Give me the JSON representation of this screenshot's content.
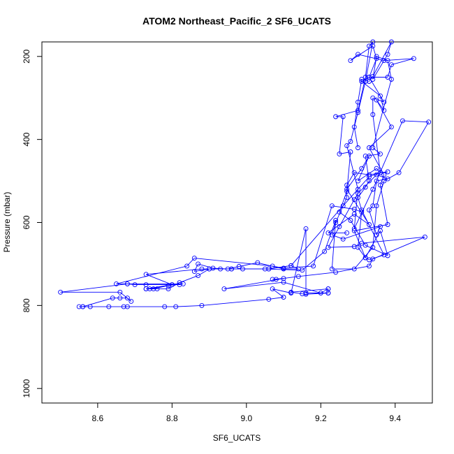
{
  "chart_data": {
    "type": "scatter",
    "title": "ATOM2 Northeast_Pacific_2 SF6_UCATS",
    "xlabel": "SF6_UCATS",
    "ylabel": "Pressure (mbar)",
    "xlim": [
      8.45,
      9.5
    ],
    "ylim": [
      1035,
      165
    ],
    "y_reversed": true,
    "x_ticks": [
      "8.6",
      "8.8",
      "9.0",
      "9.2",
      "9.4"
    ],
    "y_ticks": [
      "200",
      "400",
      "600",
      "800",
      "1000"
    ],
    "grid": false,
    "legend": "none",
    "connect_points": true,
    "series_color": "#0000ff",
    "series": [
      {
        "points": [
          [
            9.27,
            625
          ],
          [
            9.22,
            625
          ],
          [
            9.29,
            580
          ],
          [
            9.33,
            605
          ],
          [
            9.27,
            520
          ],
          [
            9.31,
            470
          ],
          [
            9.33,
            440
          ],
          [
            9.3,
            500
          ],
          [
            9.35,
            470
          ],
          [
            9.36,
            480
          ],
          [
            9.34,
            340
          ],
          [
            9.34,
            300
          ],
          [
            9.37,
            310
          ],
          [
            9.33,
            250
          ],
          [
            9.35,
            205
          ],
          [
            9.34,
            175
          ],
          [
            9.28,
            210
          ],
          [
            9.3,
            195
          ],
          [
            9.37,
            210
          ],
          [
            9.45,
            205
          ],
          [
            9.39,
            220
          ],
          [
            9.38,
            250
          ],
          [
            9.33,
            250
          ],
          [
            9.31,
            260
          ],
          [
            9.36,
            295
          ],
          [
            9.37,
            330
          ],
          [
            9.35,
            305
          ],
          [
            9.39,
            370
          ],
          [
            9.33,
            420
          ],
          [
            9.37,
            485
          ],
          [
            9.36,
            510
          ],
          [
            9.38,
            605
          ],
          [
            9.29,
            620
          ],
          [
            9.32,
            685
          ],
          [
            9.36,
            620
          ],
          [
            9.38,
            680
          ],
          [
            9.32,
            655
          ],
          [
            9.28,
            595
          ],
          [
            9.25,
            575
          ],
          [
            9.27,
            525
          ],
          [
            9.28,
            430
          ],
          [
            9.25,
            435
          ],
          [
            9.26,
            345
          ],
          [
            9.24,
            345
          ],
          [
            9.3,
            330
          ],
          [
            9.32,
            250
          ],
          [
            9.33,
            175
          ],
          [
            9.34,
            165
          ],
          [
            9.32,
            260
          ],
          [
            9.3,
            335
          ],
          [
            9.28,
            405
          ],
          [
            9.27,
            415
          ],
          [
            9.3,
            520
          ],
          [
            9.29,
            615
          ],
          [
            9.34,
            520
          ],
          [
            9.42,
            355
          ],
          [
            9.49,
            358
          ],
          [
            9.41,
            480
          ],
          [
            9.37,
            500
          ],
          [
            9.35,
            560
          ],
          [
            9.34,
            660
          ],
          [
            9.29,
            712
          ],
          [
            9.23,
            712
          ],
          [
            9.24,
            595
          ],
          [
            9.21,
            670
          ],
          [
            9.15,
            715
          ],
          [
            9.05,
            712
          ],
          [
            8.96,
            712
          ],
          [
            8.9,
            712
          ],
          [
            8.86,
            718
          ],
          [
            8.87,
            700
          ],
          [
            8.91,
            710
          ],
          [
            8.95,
            712
          ],
          [
            8.98,
            706
          ],
          [
            9.03,
            697
          ],
          [
            9.1,
            712
          ],
          [
            9.14,
            712
          ],
          [
            9.12,
            704
          ],
          [
            9.06,
            712
          ],
          [
            8.99,
            712
          ],
          [
            8.93,
            712
          ],
          [
            8.88,
            712
          ],
          [
            8.73,
            725
          ],
          [
            8.8,
            750
          ],
          [
            8.73,
            760
          ],
          [
            8.76,
            760
          ],
          [
            8.79,
            760
          ],
          [
            8.82,
            745
          ],
          [
            8.87,
            728
          ],
          [
            8.9,
            712
          ],
          [
            8.96,
            712
          ],
          [
            9.06,
            712
          ],
          [
            9.12,
            704
          ],
          [
            9.26,
            560
          ],
          [
            9.33,
            490
          ],
          [
            9.36,
            480
          ],
          [
            9.38,
            478
          ],
          [
            9.33,
            485
          ],
          [
            9.29,
            480
          ],
          [
            9.27,
            510
          ],
          [
            9.27,
            540
          ],
          [
            9.24,
            600
          ],
          [
            9.23,
            630
          ],
          [
            9.26,
            640
          ],
          [
            9.36,
            610
          ],
          [
            9.35,
            630
          ],
          [
            9.33,
            570
          ],
          [
            9.34,
            560
          ],
          [
            9.35,
            500
          ],
          [
            9.38,
            495
          ],
          [
            9.35,
            485
          ],
          [
            9.3,
            530
          ],
          [
            9.29,
            545
          ],
          [
            9.25,
            610
          ],
          [
            9.22,
            660
          ],
          [
            9.29,
            658
          ],
          [
            9.31,
            650
          ],
          [
            9.48,
            635
          ],
          [
            9.34,
            688
          ],
          [
            9.33,
            705
          ],
          [
            9.24,
            720
          ],
          [
            9.14,
            730
          ],
          [
            9.08,
            737
          ],
          [
            9.07,
            737
          ],
          [
            9.1,
            735
          ],
          [
            8.94,
            760
          ],
          [
            9.1,
            744
          ],
          [
            9.2,
            770
          ],
          [
            9.22,
            760
          ],
          [
            9.12,
            768
          ],
          [
            9.15,
            772
          ],
          [
            9.16,
            773
          ],
          [
            9.22,
            770
          ],
          [
            9.22,
            760
          ],
          [
            9.22,
            770
          ],
          [
            9.16,
            770
          ],
          [
            9.16,
            615
          ],
          [
            9.12,
            770
          ],
          [
            9.07,
            760
          ],
          [
            9.1,
            780
          ],
          [
            9.06,
            785
          ],
          [
            8.88,
            800
          ],
          [
            8.81,
            803
          ],
          [
            8.78,
            803
          ],
          [
            8.68,
            803
          ],
          [
            8.67,
            803
          ],
          [
            8.63,
            803
          ],
          [
            8.58,
            803
          ],
          [
            8.56,
            803
          ],
          [
            8.55,
            803
          ],
          [
            8.56,
            803
          ],
          [
            8.64,
            782
          ],
          [
            8.66,
            782
          ],
          [
            8.68,
            782
          ],
          [
            8.69,
            790
          ],
          [
            8.66,
            768
          ],
          [
            8.5,
            768
          ],
          [
            8.68,
            748
          ],
          [
            8.7,
            750
          ],
          [
            8.73,
            750
          ],
          [
            8.82,
            750
          ],
          [
            8.8,
            750
          ],
          [
            8.74,
            760
          ],
          [
            8.73,
            760
          ],
          [
            8.75,
            760
          ],
          [
            8.79,
            752
          ],
          [
            8.83,
            748
          ],
          [
            8.68,
            748
          ],
          [
            8.65,
            748
          ],
          [
            8.84,
            705
          ],
          [
            8.86,
            686
          ],
          [
            9.07,
            705
          ],
          [
            9.1,
            710
          ],
          [
            9.18,
            705
          ],
          [
            9.23,
            560
          ],
          [
            9.29,
            568
          ],
          [
            9.31,
            575
          ],
          [
            9.3,
            660
          ],
          [
            9.32,
            685
          ],
          [
            9.33,
            690
          ],
          [
            9.37,
            678
          ],
          [
            9.31,
            570
          ],
          [
            9.3,
            540
          ],
          [
            9.32,
            515
          ],
          [
            9.33,
            500
          ],
          [
            9.32,
            440
          ],
          [
            9.36,
            435
          ],
          [
            9.34,
            420
          ],
          [
            9.39,
            255
          ],
          [
            9.38,
            210
          ],
          [
            9.35,
            200
          ],
          [
            9.34,
            255
          ],
          [
            9.38,
            195
          ],
          [
            9.39,
            165
          ],
          [
            9.34,
            248
          ],
          [
            9.33,
            260
          ],
          [
            9.31,
            255
          ],
          [
            9.3,
            310
          ],
          [
            9.29,
            370
          ],
          [
            9.3,
            420
          ]
        ]
      }
    ]
  }
}
